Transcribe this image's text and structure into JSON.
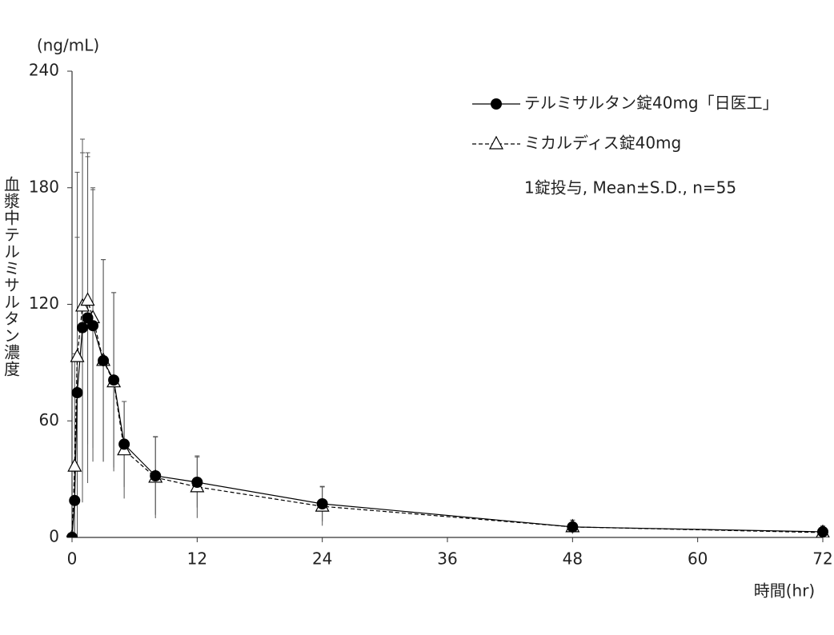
{
  "chart_data": {
    "type": "line",
    "y_unit": "(ng/mL)",
    "y_label": "血漿中テルミサルタン濃度",
    "x_label": "時間(hr)",
    "annotation": "1錠投与, Mean±S.D., n=55",
    "x": [
      0,
      0.25,
      0.5,
      1,
      1.5,
      2,
      3,
      4,
      5,
      8,
      12,
      24,
      48,
      72
    ],
    "series": [
      {
        "name": "テルミサルタン錠40mg「日医工」",
        "color": "#000000",
        "line_style": "solid",
        "marker": "circle",
        "values": [
          0,
          19,
          74.5,
          108,
          113,
          109,
          91,
          81,
          48,
          31.7,
          28.4,
          17.3,
          5.4,
          2.9
        ],
        "errors": [
          0,
          18,
          80,
          90,
          85,
          70,
          52,
          45,
          22,
          20,
          13,
          9,
          3.5,
          3
        ]
      },
      {
        "name": "ミカルディス錠40mg",
        "color": "#000000",
        "line_style": "dashed",
        "marker": "triangle",
        "values": [
          0,
          36.6,
          93,
          119,
          122,
          113,
          91,
          80,
          45,
          30.9,
          26,
          16,
          5.4,
          2.5
        ],
        "errors": [
          0,
          58,
          95,
          86,
          74,
          67,
          52,
          46,
          25,
          21,
          16,
          10,
          3.5,
          3
        ]
      }
    ],
    "xlim": [
      0,
      72
    ],
    "xticks": [
      0,
      12,
      24,
      36,
      48,
      60,
      72
    ],
    "ylim": [
      0,
      240
    ],
    "yticks": [
      0,
      60,
      120,
      180,
      240
    ],
    "grid": false
  }
}
